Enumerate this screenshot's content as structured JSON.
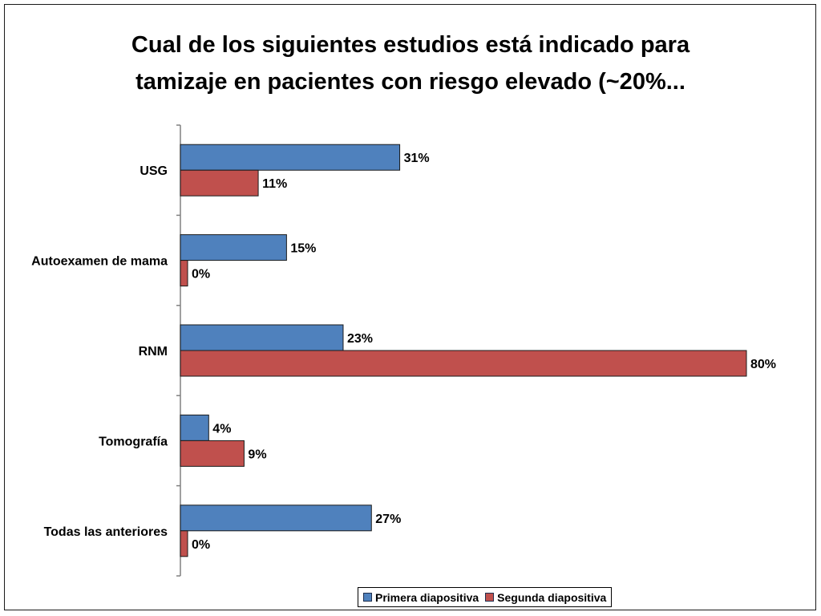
{
  "chart_data": {
    "type": "bar",
    "orientation": "horizontal",
    "title_lines": [
      "Cual de los siguientes estudios está indicado para",
      "tamizaje en pacientes con riesgo elevado (~20%..."
    ],
    "categories": [
      "USG",
      "Autoexamen de mama",
      "RNM",
      "Tomografía",
      "Todas las anteriores"
    ],
    "series": [
      {
        "name": "Primera diapositiva",
        "color": "#4f81bd",
        "values": [
          31,
          15,
          23,
          4,
          27
        ],
        "labels": [
          "31%",
          "15%",
          "23%",
          "4%",
          "27%"
        ]
      },
      {
        "name": "Segunda diapositiva",
        "color": "#c0504d",
        "values": [
          11,
          0,
          80,
          9,
          0
        ],
        "labels": [
          "11%",
          "0%",
          "80%",
          "9%",
          "0%"
        ]
      }
    ],
    "xlim": [
      0,
      80
    ],
    "grid": false,
    "legend_position": "bottom-right"
  }
}
